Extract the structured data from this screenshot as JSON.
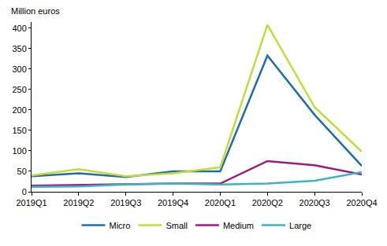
{
  "chart_data": {
    "type": "line",
    "y_label": "Million euros",
    "categories": [
      "2019Q1",
      "2019Q2",
      "2019Q3",
      "2019Q4",
      "2020Q1",
      "2020Q2",
      "2020Q3",
      "2020Q4"
    ],
    "series": [
      {
        "name": "Micro",
        "color": "#1f6fa6",
        "values": [
          38,
          45,
          36,
          50,
          50,
          333,
          188,
          63
        ]
      },
      {
        "name": "Small",
        "color": "#c5db3a",
        "values": [
          40,
          55,
          38,
          45,
          60,
          408,
          207,
          98
        ]
      },
      {
        "name": "Medium",
        "color": "#9e1a7c",
        "values": [
          15,
          17,
          18,
          20,
          20,
          75,
          65,
          42
        ]
      },
      {
        "name": "Large",
        "color": "#3db5c1",
        "values": [
          12,
          13,
          18,
          20,
          18,
          20,
          27,
          48
        ]
      }
    ],
    "ylim": [
      0,
      415
    ],
    "yticks": [
      0,
      50,
      100,
      150,
      200,
      250,
      300,
      350,
      400
    ],
    "grid": false,
    "legend": "bottom"
  }
}
